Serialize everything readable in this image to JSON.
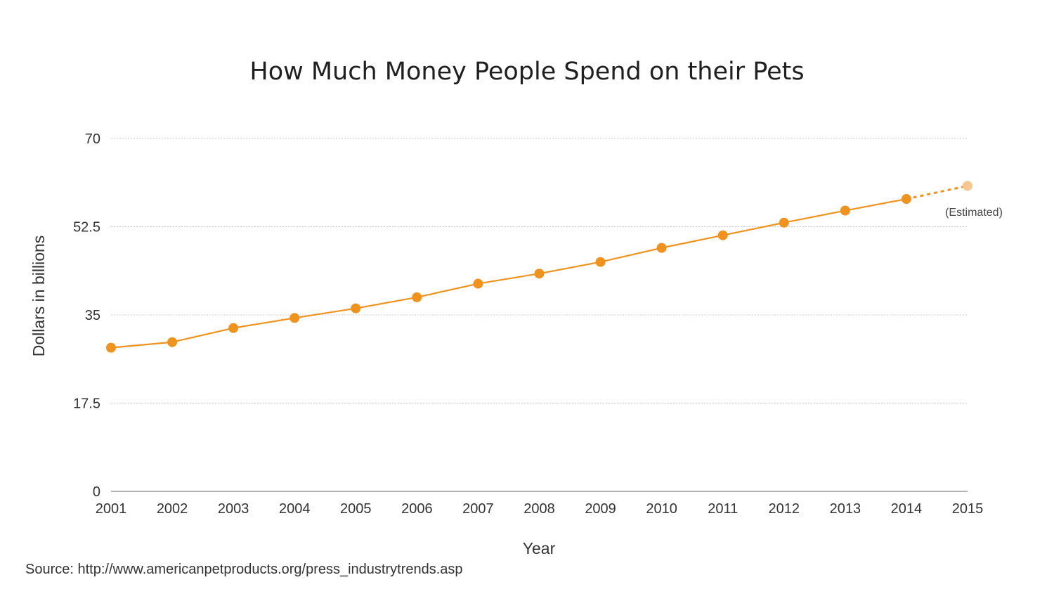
{
  "chart_data": {
    "type": "line",
    "title": "How Much Money People Spend on their Pets",
    "xlabel": "Year",
    "ylabel": "Dollars in billions",
    "ylim": [
      0,
      70
    ],
    "yticks": [
      "0",
      "17.5",
      "35",
      "52.5",
      "70"
    ],
    "x": [
      "2001",
      "2002",
      "2003",
      "2004",
      "2005",
      "2006",
      "2007",
      "2008",
      "2009",
      "2010",
      "2011",
      "2012",
      "2013",
      "2014",
      "2015"
    ],
    "series": [
      {
        "values": [
          28.5,
          29.6,
          32.4,
          34.4,
          36.3,
          38.5,
          41.2,
          43.2,
          45.5,
          48.3,
          50.8,
          53.3,
          55.7,
          58.0,
          60.6
        ],
        "estimated_from": "2015"
      }
    ],
    "annotation": "(Estimated)",
    "grid": true,
    "grid_axis": "y",
    "colors": {
      "line": "#f0921e",
      "estimated_point": "#f6c790",
      "grid": "#c8c8c8",
      "axis": "#999999"
    }
  },
  "source_text": "Source: http://www.americanpetproducts.org/press_industrytrends.asp"
}
